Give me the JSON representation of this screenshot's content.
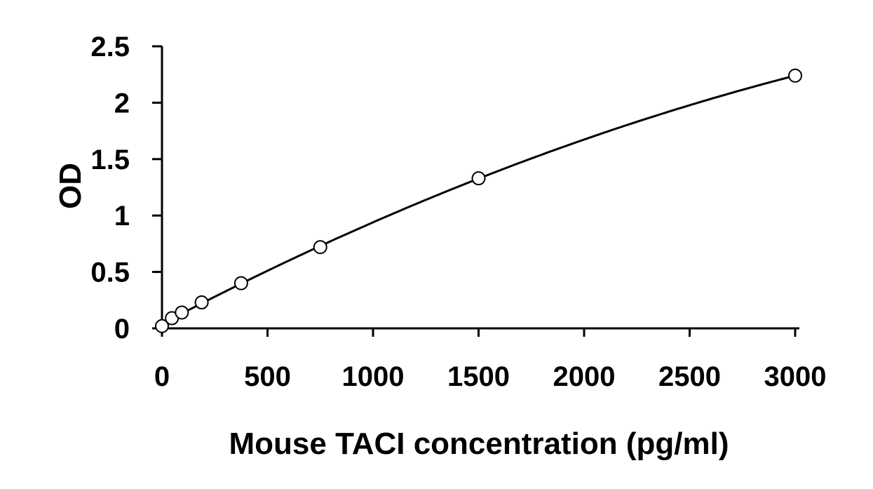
{
  "chart_data": {
    "type": "scatter",
    "title": "",
    "xlabel": "Mouse TACI concentration (pg/ml)",
    "ylabel": "OD",
    "xlim": [
      0,
      3000
    ],
    "ylim": [
      0,
      2.5
    ],
    "x_ticks": [
      "0",
      "500",
      "1000",
      "1500",
      "2000",
      "2500",
      "3000"
    ],
    "y_ticks": [
      "0",
      "0.5",
      "1",
      "1.5",
      "2",
      "2.5"
    ],
    "grid": false,
    "legend": "none",
    "series": [
      {
        "values_x": [
          0,
          47,
          94,
          188,
          375,
          750,
          1500,
          3000
        ],
        "values_y": [
          0.02,
          0.09,
          0.14,
          0.23,
          0.4,
          0.72,
          1.33,
          2.24
        ],
        "marker": "open-circle",
        "trendline": "smooth-fit"
      }
    ],
    "colors": {
      "line": "#000000",
      "marker_fill": "#ffffff",
      "marker_stroke": "#000000"
    }
  }
}
